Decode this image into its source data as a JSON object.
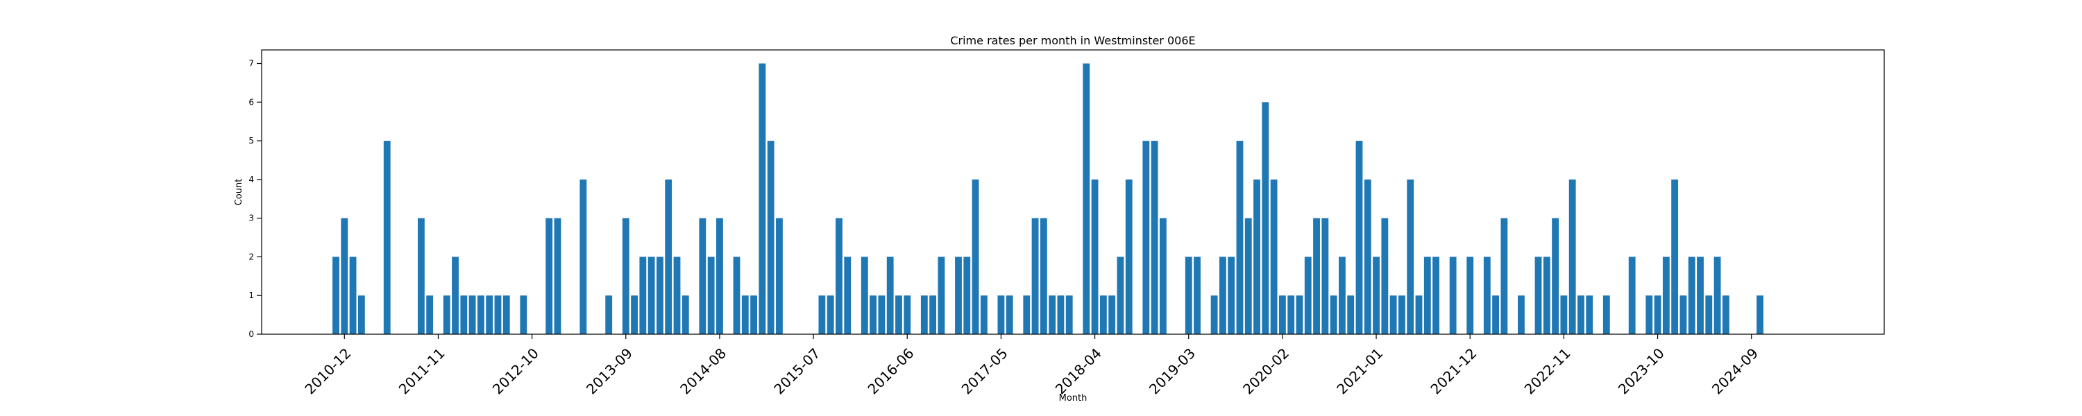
{
  "chart_data": {
    "type": "bar",
    "title": "Crime rates per month in Westminster 006E",
    "xlabel": "Month",
    "ylabel": "Count",
    "ylim": [
      0,
      7.35
    ],
    "yticks": [
      0,
      1,
      2,
      3,
      4,
      5,
      6,
      7
    ],
    "grid": false,
    "legend": "none",
    "bar_color": "#1f77b4",
    "xticks": [
      "2010-12",
      "2011-11",
      "2012-10",
      "2013-09",
      "2014-08",
      "2015-07",
      "2016-06",
      "2017-05",
      "2018-04",
      "2019-03",
      "2020-02",
      "2021-01",
      "2021-12",
      "2022-11",
      "2023-10",
      "2024-09"
    ],
    "x": [
      "2010-11",
      "2010-12",
      "2011-01",
      "2011-02",
      "2011-05",
      "2011-09",
      "2011-10",
      "2011-12",
      "2012-01",
      "2012-02",
      "2012-03",
      "2012-04",
      "2012-05",
      "2012-06",
      "2012-07",
      "2012-09",
      "2012-12",
      "2013-01",
      "2013-04",
      "2013-07",
      "2013-09",
      "2013-10",
      "2013-11",
      "2013-12",
      "2014-01",
      "2014-02",
      "2014-03",
      "2014-04",
      "2014-06",
      "2014-07",
      "2014-08",
      "2014-10",
      "2014-11",
      "2014-12",
      "2015-01",
      "2015-02",
      "2015-03",
      "2015-08",
      "2015-09",
      "2015-10",
      "2015-11",
      "2016-01",
      "2016-02",
      "2016-03",
      "2016-04",
      "2016-05",
      "2016-06",
      "2016-08",
      "2016-09",
      "2016-10",
      "2016-12",
      "2017-01",
      "2017-02",
      "2017-03",
      "2017-05",
      "2017-06",
      "2017-08",
      "2017-09",
      "2017-10",
      "2017-11",
      "2017-12",
      "2018-01",
      "2018-03",
      "2018-04",
      "2018-05",
      "2018-06",
      "2018-07",
      "2018-08",
      "2018-10",
      "2018-11",
      "2018-12",
      "2019-03",
      "2019-04",
      "2019-06",
      "2019-07",
      "2019-08",
      "2019-09",
      "2019-10",
      "2019-11",
      "2019-12",
      "2020-01",
      "2020-02",
      "2020-03",
      "2020-04",
      "2020-05",
      "2020-06",
      "2020-07",
      "2020-08",
      "2020-09",
      "2020-10",
      "2020-11",
      "2020-12",
      "2021-01",
      "2021-02",
      "2021-03",
      "2021-04",
      "2021-05",
      "2021-06",
      "2021-07",
      "2021-08",
      "2021-10",
      "2021-12",
      "2022-02",
      "2022-03",
      "2022-04",
      "2022-06",
      "2022-08",
      "2022-09",
      "2022-10",
      "2022-11",
      "2022-12",
      "2023-01",
      "2023-02",
      "2023-04",
      "2023-07",
      "2023-09",
      "2023-10",
      "2023-11",
      "2023-12",
      "2024-01",
      "2024-02",
      "2024-03",
      "2024-04",
      "2024-05",
      "2024-06",
      "2024-10"
    ],
    "values": [
      2,
      3,
      2,
      1,
      5,
      3,
      1,
      1,
      2,
      1,
      1,
      1,
      1,
      1,
      1,
      1,
      3,
      3,
      4,
      1,
      3,
      1,
      2,
      2,
      2,
      4,
      2,
      1,
      3,
      2,
      3,
      2,
      1,
      1,
      7,
      5,
      3,
      1,
      1,
      3,
      2,
      2,
      1,
      1,
      2,
      1,
      1,
      1,
      1,
      2,
      2,
      2,
      4,
      1,
      1,
      1,
      1,
      3,
      3,
      1,
      1,
      1,
      7,
      4,
      1,
      1,
      2,
      4,
      5,
      5,
      3,
      2,
      2,
      1,
      2,
      2,
      5,
      3,
      4,
      6,
      4,
      1,
      1,
      1,
      2,
      3,
      3,
      1,
      2,
      1,
      5,
      4,
      2,
      3,
      1,
      1,
      4,
      1,
      2,
      2,
      2,
      2,
      2,
      1,
      3,
      1,
      2,
      2,
      3,
      1,
      4,
      1,
      1,
      1,
      2,
      1,
      1,
      2,
      4,
      1,
      2,
      2,
      1,
      2,
      1,
      1
    ]
  }
}
